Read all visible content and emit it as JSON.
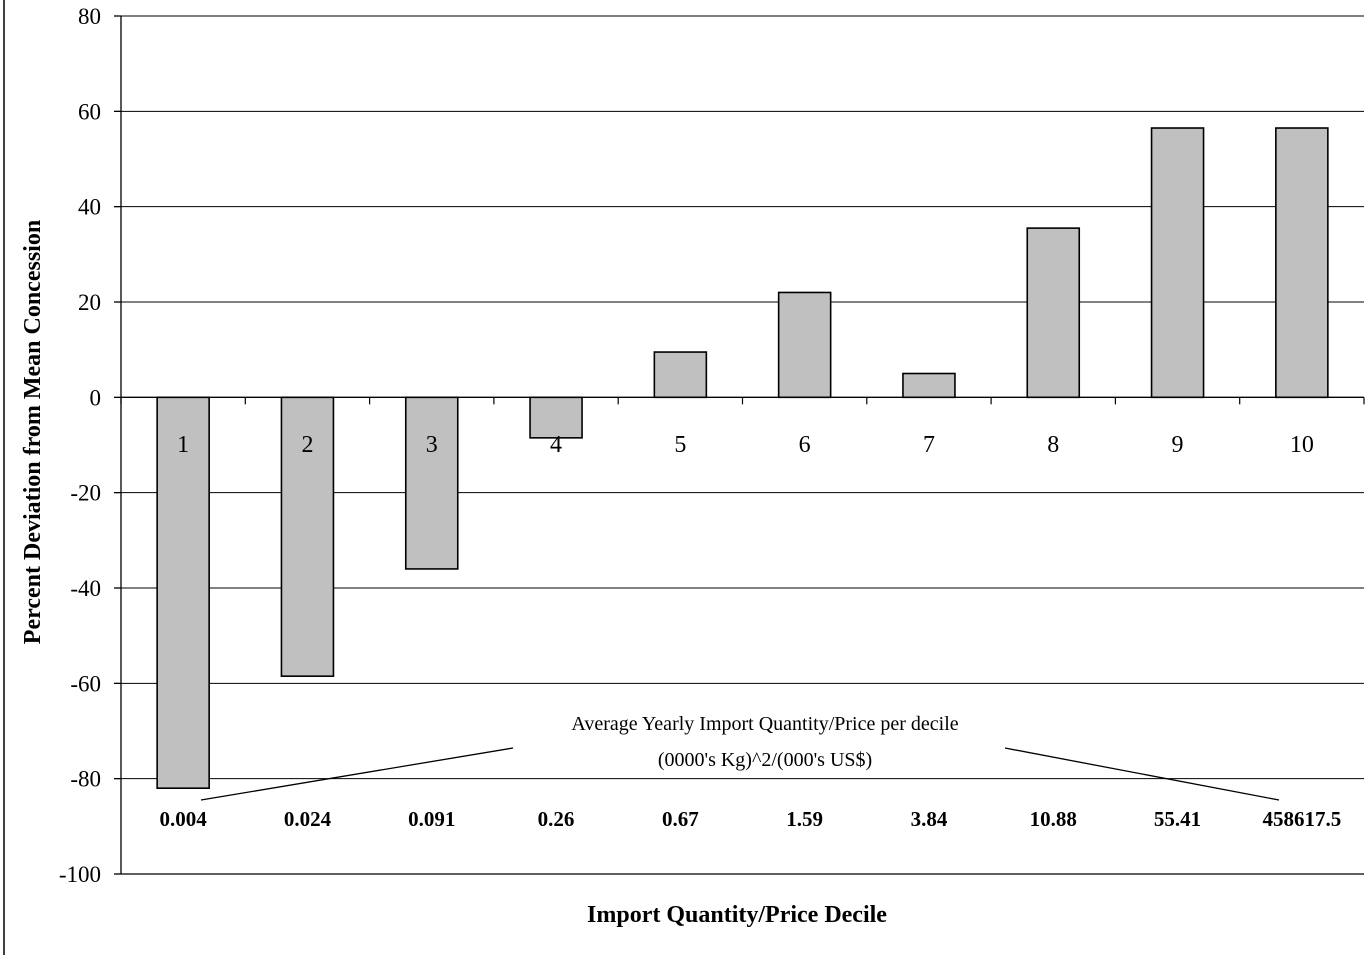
{
  "chart_data": {
    "type": "bar",
    "title": "",
    "xlabel": "Import Quantity/Price Decile",
    "ylabel": "Percent Deviation from Mean Concession",
    "ylim": [
      -100,
      80
    ],
    "y_ticks": [
      80,
      60,
      40,
      20,
      0,
      -20,
      -40,
      -60,
      -80,
      -100
    ],
    "grid": true,
    "categories": [
      "1",
      "2",
      "3",
      "4",
      "5",
      "6",
      "7",
      "8",
      "9",
      "10"
    ],
    "values": [
      -82,
      -58.5,
      -36,
      -8.5,
      9.5,
      22,
      5,
      35.5,
      56.5,
      56.5
    ],
    "decile_averages": [
      "0.004",
      "0.024",
      "0.091",
      "0.26",
      "0.67",
      "1.59",
      "3.84",
      "10.88",
      "55.41",
      "458617.5"
    ],
    "annotation": {
      "line1": "Average Yearly Import Quantity/Price per decile",
      "line2": "(0000's Kg)^2/(000's US$)"
    },
    "colors": {
      "bar_fill": "#c0c0c0",
      "bar_stroke": "#000000",
      "grid": "#000000"
    }
  }
}
